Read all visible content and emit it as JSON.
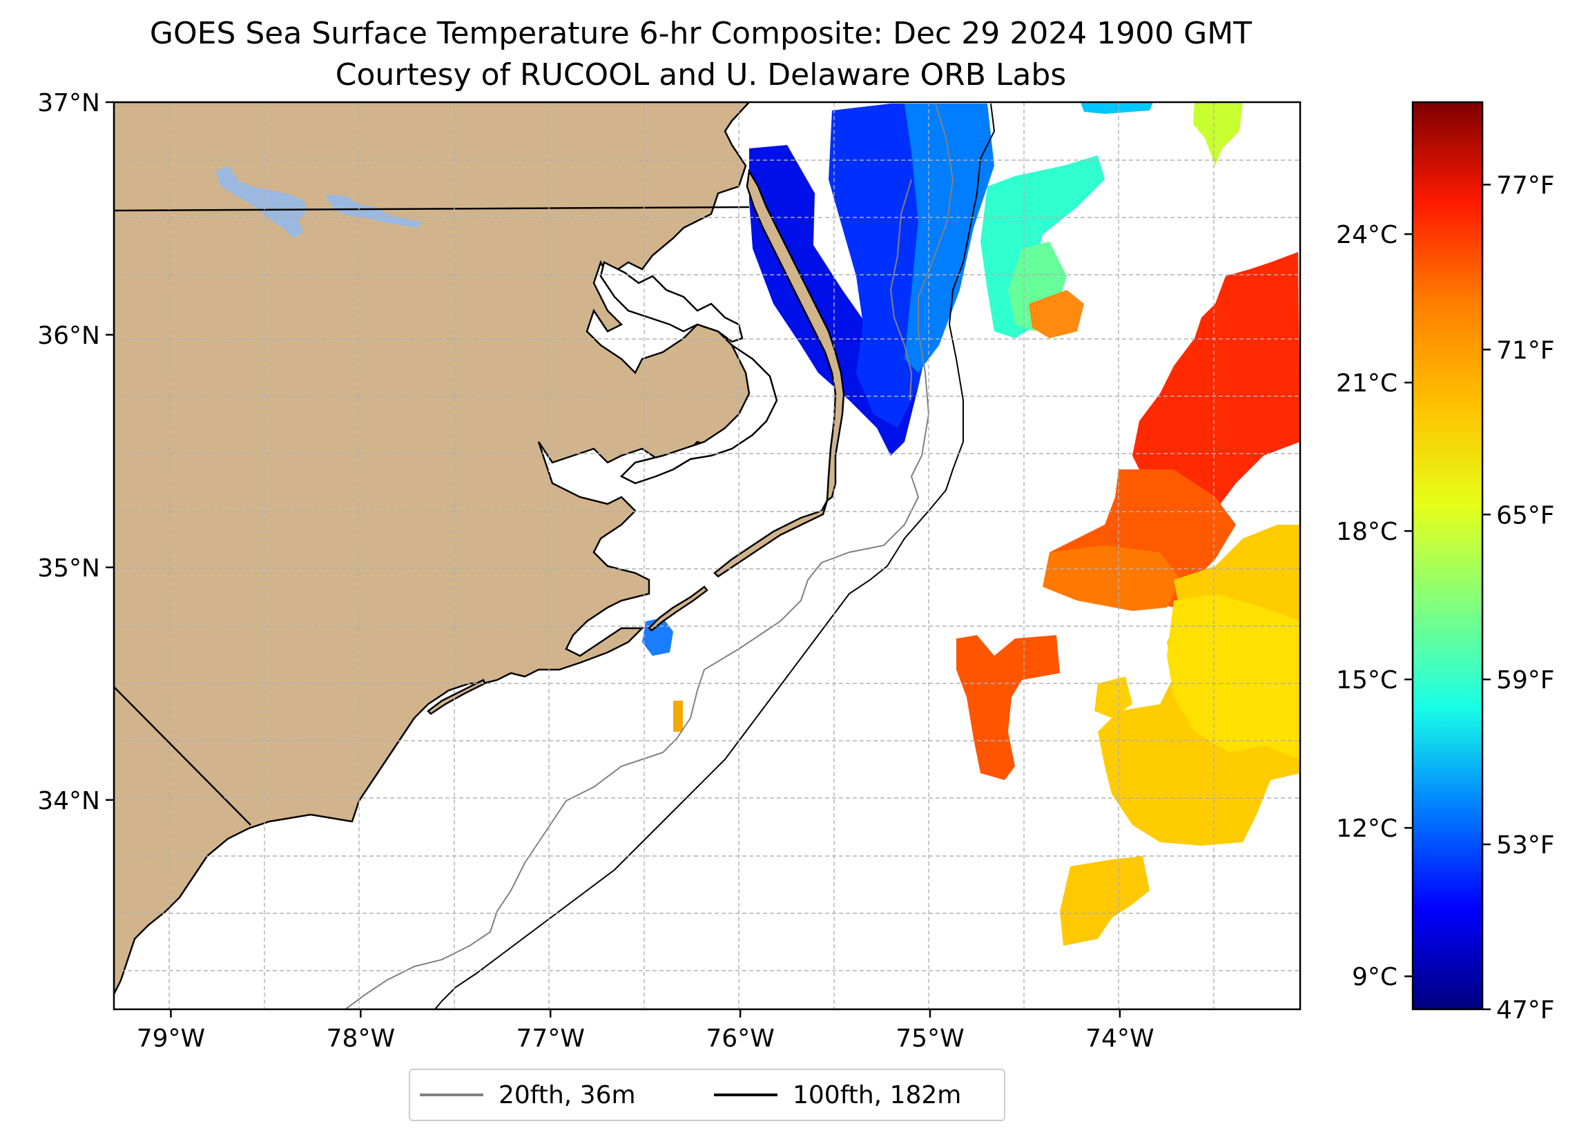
{
  "title": {
    "line1": "GOES Sea Surface Temperature 6-hr Composite: Dec 29 2024 1900 GMT",
    "line2": "Courtesy of RUCOOL and U. Delaware ORB Labs"
  },
  "axes": {
    "lon_labels": [
      "79°W",
      "78°W",
      "77°W",
      "76°W",
      "75°W",
      "74°W"
    ],
    "lon_values": [
      -79,
      -78,
      -77,
      -76,
      -75,
      -74
    ],
    "lat_labels": [
      "37°N",
      "36°N",
      "35°N",
      "34°N"
    ],
    "lat_values": [
      37,
      36,
      35,
      34
    ],
    "lon_range": [
      -79.3,
      -73.05
    ],
    "lat_range": [
      33.1,
      37.0
    ]
  },
  "colorbar": {
    "celsius_labels": [
      "24°C",
      "21°C",
      "18°C",
      "15°C",
      "12°C",
      "9°C"
    ],
    "celsius_values": [
      24,
      21,
      18,
      15,
      12,
      9
    ],
    "fahrenheit_labels": [
      "77°F",
      "71°F",
      "65°F",
      "59°F",
      "53°F",
      "47°F"
    ],
    "fahrenheit_values": [
      77,
      71,
      65,
      59,
      53,
      47
    ],
    "range_f": [
      47,
      80
    ],
    "stops": [
      "#00007f",
      "#0000ff",
      "#007fff",
      "#19ffe6",
      "#7fff7f",
      "#e6ff19",
      "#ffc000",
      "#ff7f00",
      "#ff1a00",
      "#7f0000"
    ]
  },
  "legend": {
    "items": [
      {
        "label": "20fth, 36m",
        "color": "#808080"
      },
      {
        "label": "100fth, 182m",
        "color": "#000000"
      }
    ]
  },
  "colors": {
    "land": "#d2b48c",
    "lake": "#9ab8e0",
    "grid": "#b0b0b0",
    "isobath_20": "#808080",
    "isobath_100": "#000000"
  }
}
